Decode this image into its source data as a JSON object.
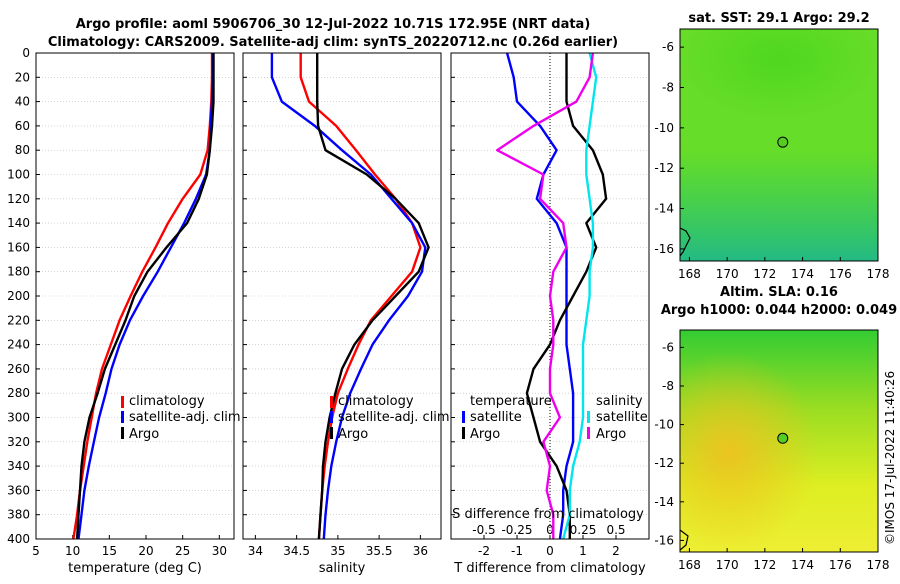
{
  "header": {
    "title_line1": "Argo profile: aoml 5906706_30 12-Jul-2022 10.71S 172.95E (NRT data)",
    "title_line2": "Climatology: CARS2009. Satellite-adj clim: synTS_20220712.nc (0.26d earlier)"
  },
  "depth_ticks": [
    "0",
    "20",
    "40",
    "60",
    "80",
    "100",
    "120",
    "140",
    "160",
    "180",
    "200",
    "220",
    "240",
    "260",
    "280",
    "300",
    "320",
    "340",
    "360",
    "380",
    "400"
  ],
  "colors": {
    "climatology": "#ff0000",
    "satellite": "#0000ff",
    "argo": "#000000",
    "temp_diff": "#00e5ee",
    "sal_diff": "#ee00ee"
  },
  "legend": {
    "climatology": "climatology",
    "satellite": "satellite-adj. clim",
    "argo": "Argo"
  },
  "diff_legend": {
    "temperature": "temperature",
    "salinity": "salinity",
    "satellite": "satellite",
    "argo": "Argo"
  },
  "chart_data": [
    {
      "type": "line",
      "name": "temperature-profile",
      "xlabel": "temperature (deg C)",
      "ylabel": "depth",
      "xlim": [
        5,
        32
      ],
      "ylim": [
        400,
        0
      ],
      "xticks": [
        "5",
        "10",
        "15",
        "20",
        "25",
        "30"
      ],
      "depth": [
        0,
        20,
        40,
        60,
        80,
        100,
        120,
        140,
        160,
        180,
        200,
        220,
        240,
        260,
        280,
        300,
        320,
        340,
        360,
        380,
        400
      ],
      "series": [
        {
          "name": "climatology",
          "values": [
            29.0,
            29.0,
            28.9,
            28.7,
            28.4,
            27.4,
            25.0,
            23.0,
            21.3,
            19.5,
            17.9,
            16.4,
            15.2,
            14.0,
            13.2,
            12.6,
            12.0,
            11.5,
            11.0,
            10.6,
            10.1
          ]
        },
        {
          "name": "satellite-adj. clim",
          "values": [
            29.1,
            29.1,
            29.0,
            28.8,
            28.7,
            28.2,
            26.8,
            25.2,
            23.4,
            21.6,
            19.6,
            17.8,
            16.4,
            15.3,
            14.5,
            13.6,
            12.9,
            12.2,
            11.6,
            11.2,
            10.8
          ]
        },
        {
          "name": "Argo",
          "values": [
            29.2,
            29.2,
            29.2,
            29.0,
            28.7,
            28.3,
            27.2,
            25.6,
            22.8,
            20.2,
            18.4,
            17.2,
            15.8,
            14.4,
            13.4,
            12.3,
            11.6,
            11.2,
            11.0,
            10.8,
            10.6
          ]
        }
      ]
    },
    {
      "type": "line",
      "name": "salinity-profile",
      "xlabel": "salinity",
      "xlim": [
        33.85,
        36.25
      ],
      "ylim": [
        400,
        0
      ],
      "xticks": [
        "34",
        "34.5",
        "35",
        "35.5",
        "36"
      ],
      "depth": [
        0,
        20,
        40,
        60,
        80,
        100,
        120,
        140,
        160,
        180,
        200,
        220,
        240,
        260,
        280,
        300,
        320,
        340,
        360,
        380,
        400
      ],
      "series": [
        {
          "name": "climatology",
          "values": [
            34.55,
            34.55,
            34.65,
            34.98,
            35.22,
            35.45,
            35.7,
            35.9,
            36.0,
            35.9,
            35.65,
            35.4,
            35.25,
            35.12,
            35.0,
            34.93,
            34.88,
            34.84,
            34.81,
            34.79,
            34.77
          ]
        },
        {
          "name": "satellite-adj. clim",
          "values": [
            34.2,
            34.2,
            34.32,
            34.72,
            35.05,
            35.4,
            35.65,
            35.9,
            36.06,
            36.02,
            35.85,
            35.62,
            35.42,
            35.28,
            35.15,
            35.05,
            34.98,
            34.92,
            34.88,
            34.85,
            34.83
          ]
        },
        {
          "name": "Argo",
          "values": [
            34.75,
            34.75,
            34.75,
            34.76,
            34.85,
            35.35,
            35.7,
            35.98,
            36.1,
            35.98,
            35.7,
            35.42,
            35.2,
            35.05,
            34.97,
            34.9,
            34.85,
            34.82,
            34.81,
            34.79,
            34.77
          ]
        }
      ]
    },
    {
      "type": "line",
      "name": "difference-from-climatology",
      "xlabel": "T difference from climatology",
      "xlabel_top": "S difference from climatology",
      "xlim": [
        -3,
        3
      ],
      "ylim": [
        400,
        0
      ],
      "xticks": [
        "-2",
        "-1",
        "0",
        "1",
        "2"
      ],
      "xticks_top": [
        "-0.5",
        "-0.25",
        "0",
        "0.25",
        "0.5"
      ],
      "depth": [
        0,
        20,
        40,
        60,
        80,
        100,
        120,
        140,
        160,
        180,
        200,
        220,
        240,
        260,
        280,
        300,
        320,
        340,
        360,
        380,
        400
      ],
      "series": [
        {
          "name": "temperature satellite",
          "values": [
            -1.3,
            -1.1,
            -1.0,
            -0.3,
            0.2,
            -0.2,
            -0.4,
            0.2,
            0.5,
            0.5,
            0.5,
            0.5,
            0.5,
            0.6,
            0.7,
            0.7,
            0.7,
            0.5,
            0.4,
            0.4,
            0.3
          ]
        },
        {
          "name": "temperature Argo",
          "values": [
            0.5,
            0.5,
            0.5,
            0.7,
            1.3,
            1.6,
            1.7,
            1.1,
            1.4,
            1.1,
            0.7,
            0.3,
            0.0,
            -0.5,
            -0.7,
            -0.5,
            -0.3,
            0.2,
            0.5,
            0.6,
            0.6
          ]
        },
        {
          "name": "salinity satellite",
          "values": [
            1.2,
            1.4,
            1.3,
            1.2,
            1.1,
            1.1,
            1.2,
            1.3,
            1.3,
            1.2,
            1.2,
            1.1,
            1.0,
            1.0,
            1.0,
            1.0,
            0.9,
            0.7,
            0.6,
            0.6,
            0.4
          ]
        },
        {
          "name": "salinity Argo",
          "values": [
            1.3,
            1.2,
            0.8,
            -0.5,
            -1.6,
            -0.2,
            -0.3,
            0.4,
            0.5,
            0.1,
            0.0,
            0.1,
            0.1,
            0.0,
            0.0,
            0.3,
            -0.2,
            0.0,
            -0.1,
            0.1,
            0.1
          ]
        }
      ]
    },
    {
      "type": "heatmap",
      "name": "sat-sst-map",
      "title": "sat. SST: 29.1 Argo: 29.2",
      "xlim": [
        167.5,
        178
      ],
      "ylim": [
        -16.6,
        -5.1
      ],
      "xticks": [
        "168",
        "170",
        "172",
        "174",
        "176",
        "178"
      ],
      "yticks": [
        "-6",
        "-8",
        "-10",
        "-12",
        "-14",
        "-16"
      ],
      "marker": {
        "lon": 172.95,
        "lat": -10.71
      }
    },
    {
      "type": "heatmap",
      "name": "altim-sla-map",
      "title": "Altim. SLA: 0.16",
      "subtitle": "Argo h1000: 0.044 h2000: 0.049",
      "xlim": [
        167.5,
        178
      ],
      "ylim": [
        -16.6,
        -5.1
      ],
      "xticks": [
        "168",
        "170",
        "172",
        "174",
        "176",
        "178"
      ],
      "yticks": [
        "-6",
        "-8",
        "-10",
        "-12",
        "-14",
        "-16"
      ],
      "marker": {
        "lon": 172.95,
        "lat": -10.71
      }
    }
  ],
  "footer": {
    "stamp": "©IMOS 17-Jul-2022 11:40:26"
  }
}
